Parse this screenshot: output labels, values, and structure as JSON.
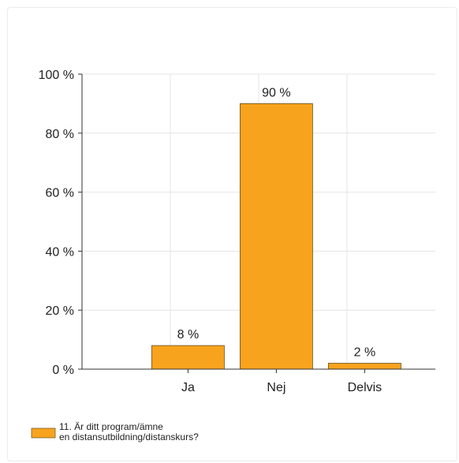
{
  "chart_data": {
    "type": "bar",
    "categories": [
      "Ja",
      "Nej",
      "Delvis"
    ],
    "series": [
      {
        "name": "11. Är ditt program/ämne en distansutbildning/distanskurs?",
        "values": [
          8,
          90,
          2
        ],
        "color": "#f8a31e"
      }
    ],
    "data_labels": [
      "8 %",
      "90 %",
      "2 %"
    ],
    "ylim": [
      0,
      100
    ],
    "yticks": [
      0,
      20,
      40,
      60,
      80,
      100
    ],
    "ytick_labels": [
      "0 %",
      "20 %",
      "40 %",
      "60 %",
      "80 %",
      "100 %"
    ],
    "grid": true,
    "legend": {
      "placement": "bottom-left",
      "lines": [
        "11. Är ditt program/ämne",
        "en distansutbildning/distanskurs?"
      ]
    }
  }
}
